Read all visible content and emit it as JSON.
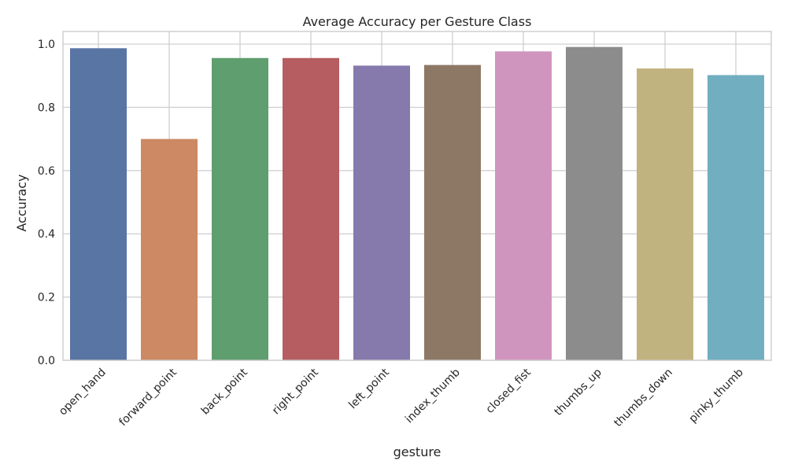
{
  "chart_data": {
    "type": "bar",
    "title": "Average Accuracy per Gesture Class",
    "xlabel": "gesture",
    "ylabel": "Accuracy",
    "categories": [
      "open_hand",
      "forward_point",
      "back_point",
      "right_point",
      "left_point",
      "index_thumb",
      "closed_fist",
      "thumbs_up",
      "thumbs_down",
      "pinky_thumb"
    ],
    "values": [
      0.987,
      0.7,
      0.956,
      0.956,
      0.932,
      0.934,
      0.977,
      0.991,
      0.923,
      0.902
    ],
    "colors": [
      "#5875a4",
      "#cc8963",
      "#5f9e6e",
      "#b55d60",
      "#857aab",
      "#8d7866",
      "#d095bf",
      "#8c8c8c",
      "#c1b37f",
      "#71aec0"
    ],
    "ylim": [
      0,
      1.04
    ],
    "yticks": [
      "0.0",
      "0.2",
      "0.4",
      "0.6",
      "0.8",
      "1.0"
    ],
    "grid": true,
    "style": "seaborn-whitegrid"
  }
}
